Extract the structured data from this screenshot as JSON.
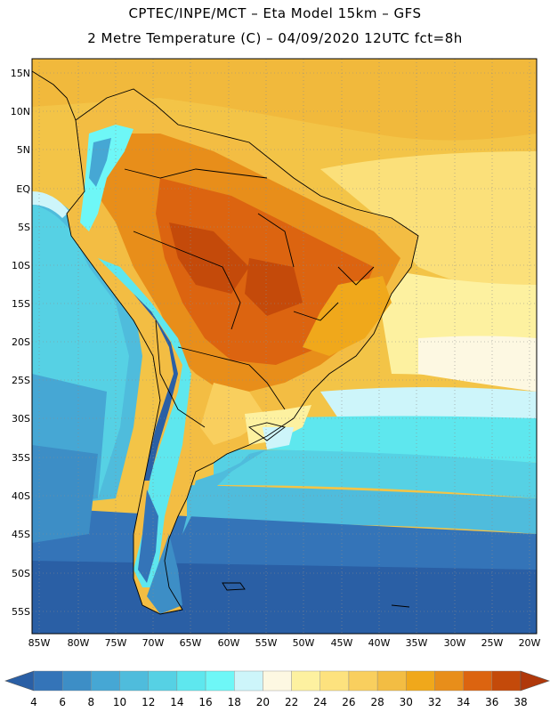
{
  "header": {
    "line1": "CPTEC/INPE/MCT –  Eta Model 15km – GFS",
    "line2": "2 Metre Temperature (C) – 04/09/2020 12UTC fct=8h"
  },
  "map": {
    "lat_labels": [
      "15N",
      "10N",
      "5N",
      "EQ",
      "5S",
      "10S",
      "15S",
      "20S",
      "25S",
      "30S",
      "35S",
      "40S",
      "45S",
      "50S",
      "55S"
    ],
    "lon_labels": [
      "85W",
      "80W",
      "75W",
      "70W",
      "65W",
      "60W",
      "55W",
      "50W",
      "45W",
      "40W",
      "35W",
      "30W",
      "25W",
      "20W"
    ]
  },
  "colorbar": {
    "labels": [
      "4",
      "6",
      "8",
      "10",
      "12",
      "14",
      "16",
      "18",
      "20",
      "22",
      "24",
      "26",
      "28",
      "30",
      "32",
      "34",
      "36",
      "38"
    ],
    "colors": [
      "#2a5fa5",
      "#3474b8",
      "#3d8ec6",
      "#46a7d4",
      "#4fbcdc",
      "#56d1e4",
      "#5ee7ee",
      "#6ef7f7",
      "#cdf5fa",
      "#fdf8e2",
      "#fdf1a0",
      "#fde27e",
      "#f9cf5e",
      "#f3bd43",
      "#f0a81b",
      "#e88e1a",
      "#dc6410",
      "#c44a0a",
      "#b0380a"
    ]
  }
}
